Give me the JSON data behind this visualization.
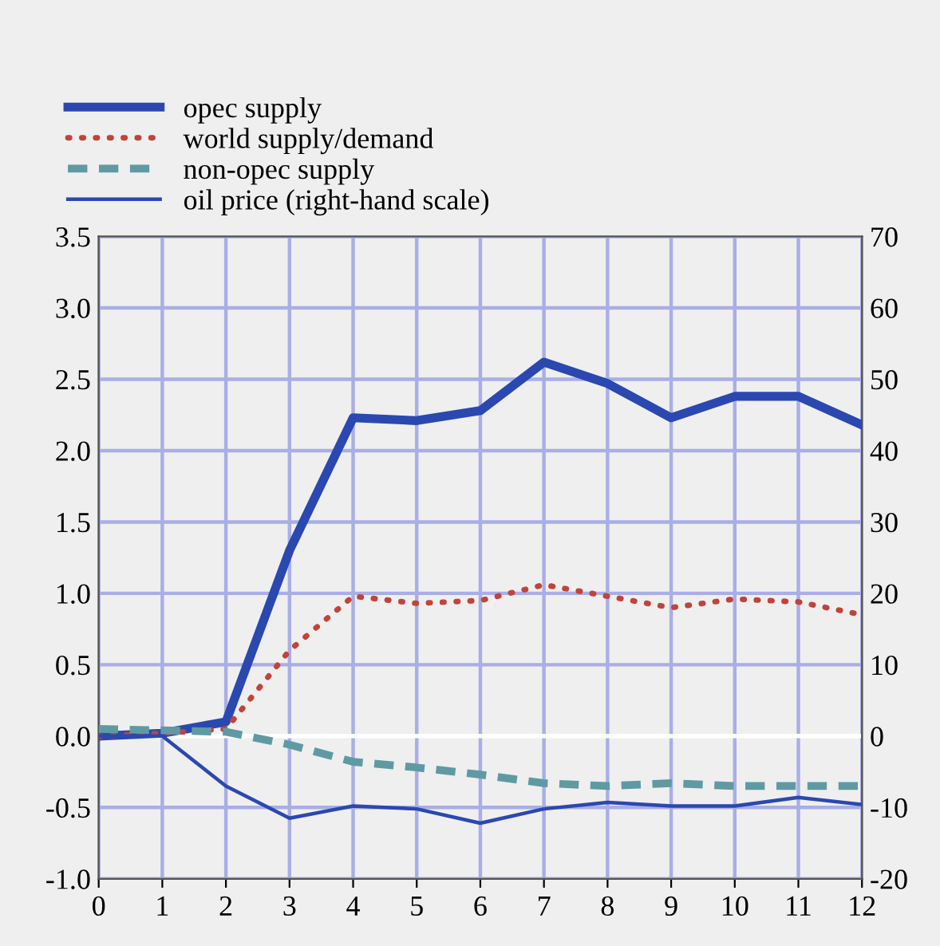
{
  "chart_data": {
    "type": "line",
    "x": [
      0,
      1,
      2,
      3,
      4,
      5,
      6,
      7,
      8,
      9,
      10,
      11,
      12
    ],
    "series": [
      {
        "name": "opec supply",
        "color": "#2a48b0",
        "line_style": "solid",
        "values": [
          0,
          0.02,
          0.1,
          1.3,
          2.23,
          2.21,
          2.28,
          2.62,
          2.47,
          2.23,
          2.38,
          2.38,
          2.18
        ]
      },
      {
        "name": "world supply/demand",
        "color": "#c0443a",
        "line_style": "dotted",
        "values": [
          0,
          0.02,
          0.05,
          0.6,
          0.98,
          0.93,
          0.95,
          1.06,
          0.98,
          0.9,
          0.96,
          0.94,
          0.85
        ]
      },
      {
        "name": "non-opec supply",
        "color": "#5f9aa3",
        "line_style": "dashed",
        "values": [
          0.05,
          0.04,
          0.03,
          -0.06,
          -0.18,
          -0.22,
          -0.27,
          -0.33,
          -0.35,
          -0.33,
          -0.35,
          -0.35,
          -0.35
        ]
      },
      {
        "name": "oil price (right-hand scale)",
        "color": "#2a48b0",
        "line_style": "solid",
        "axis": "y2",
        "values": [
          0,
          0,
          -7,
          -11.5,
          -9.8,
          -10.2,
          -12.2,
          -10.2,
          -9.3,
          -9.8,
          -9.8,
          -8.6,
          -9.6
        ]
      }
    ],
    "xlim": [
      0,
      12
    ],
    "xticks": [
      0,
      1,
      2,
      3,
      4,
      5,
      6,
      7,
      8,
      9,
      10,
      11,
      12
    ],
    "ylim": [
      -1.0,
      3.5
    ],
    "yticks": [
      {
        "value": -1,
        "label": "-1.0"
      },
      {
        "value": -0.5,
        "label": "-0.5"
      },
      {
        "value": 0,
        "label": "0.0"
      },
      {
        "value": 0.5,
        "label": "0.5"
      },
      {
        "value": 1,
        "label": "1.0"
      },
      {
        "value": 1.5,
        "label": "1.5"
      },
      {
        "value": 2,
        "label": "2.0"
      },
      {
        "value": 2.5,
        "label": "2.5"
      },
      {
        "value": 3,
        "label": "3.0"
      },
      {
        "value": 3.5,
        "label": "3.5"
      }
    ],
    "y2lim": [
      -20,
      70
    ],
    "y2ticks": [
      -20,
      -10,
      0,
      10,
      20,
      30,
      40,
      50,
      60,
      70
    ],
    "ref_lines": [
      {
        "axis": "y",
        "value": 0,
        "color": "#ffffff"
      }
    ],
    "grid": true,
    "legend": "top left",
    "marker": "none"
  }
}
